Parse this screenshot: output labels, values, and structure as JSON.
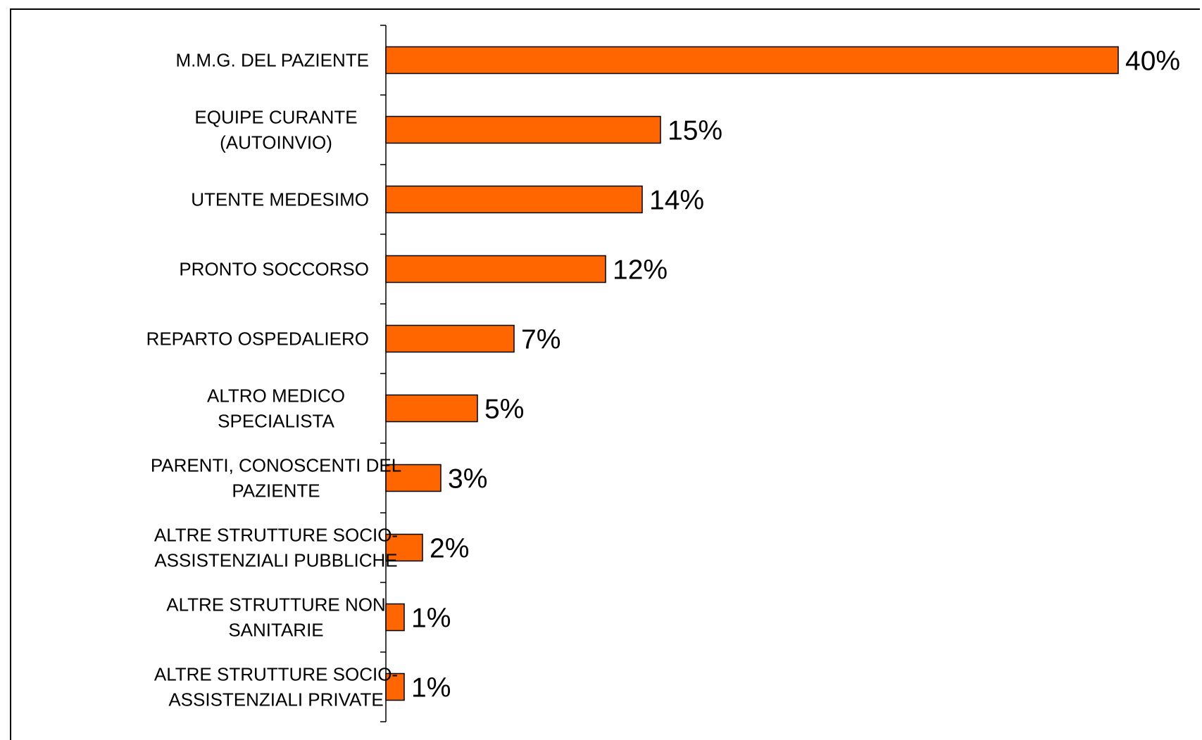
{
  "chart_data": {
    "type": "bar",
    "orientation": "horizontal",
    "title": "",
    "xlabel": "",
    "ylabel": "",
    "bar_color": "#ff6600",
    "bar_edge_color": "#000000",
    "xlim": [
      0,
      40
    ],
    "grid": false,
    "legend": "none",
    "categories": [
      [
        "M.M.G. DEL PAZIENTE"
      ],
      [
        "EQUIPE CURANTE",
        "(AUTOINVIO)"
      ],
      [
        "UTENTE MEDESIMO"
      ],
      [
        "PRONTO SOCCORSO"
      ],
      [
        "REPARTO OSPEDALIERO"
      ],
      [
        "ALTRO MEDICO",
        "SPECIALISTA"
      ],
      [
        "PARENTI, CONOSCENTI DEL",
        "PAZIENTE"
      ],
      [
        "ALTRE STRUTTURE SOCIO-",
        "ASSISTENZIALI PUBBLICHE"
      ],
      [
        "ALTRE STRUTTURE NON",
        "SANITARIE"
      ],
      [
        "ALTRE STRUTTURE SOCIO-",
        "ASSISTENZIALI PRIVATE"
      ]
    ],
    "values": [
      40,
      15,
      14,
      12,
      7,
      5,
      3,
      2,
      1,
      1
    ],
    "data_labels": [
      "40%",
      "15%",
      "14%",
      "12%",
      "7%",
      "5%",
      "3%",
      "2%",
      "1%",
      "1%"
    ]
  }
}
